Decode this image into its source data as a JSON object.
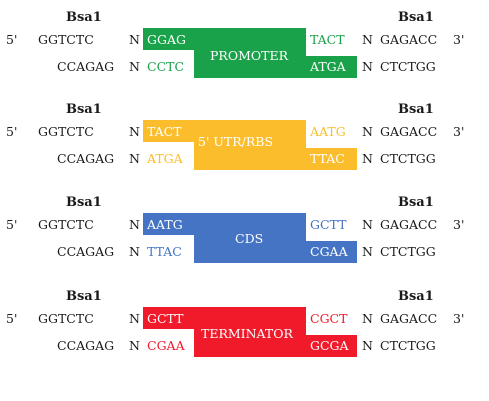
{
  "modules": [
    {
      "enzyme_left": "Bsa1",
      "enzyme_right": "Bsa1",
      "prime5": "5'",
      "site_top": "GGTCTC",
      "n_top": "N",
      "left_top": "GGAG",
      "label": "PROMOTER",
      "right_top": "TACT",
      "n_top2": "N",
      "site_top_rc": "GAGACC",
      "prime3": "3'",
      "site_bottom": "CCAGAG",
      "n_bottom": "N",
      "left_bottom": "CCTC",
      "right_bottom": "ATGA",
      "n_bottom2": "N",
      "site_bottom_rc": "CTCTGG",
      "color": "#1aa24a"
    },
    {
      "enzyme_left": "Bsa1",
      "enzyme_right": "Bsa1",
      "prime5": "5'",
      "site_top": "GGTCTC",
      "n_top": "N",
      "left_top": "TACT",
      "label": "5' UTR/RBS",
      "right_top": "AATG",
      "n_top2": "N",
      "site_top_rc": "GAGACC",
      "prime3": "3'",
      "site_bottom": "CCAGAG",
      "n_bottom": "N",
      "left_bottom": "ATGA",
      "right_bottom": "TTAC",
      "n_bottom2": "N",
      "site_bottom_rc": "CTCTGG",
      "color": "#fbbd2c"
    },
    {
      "enzyme_left": "Bsa1",
      "enzyme_right": "Bsa1",
      "prime5": "5'",
      "site_top": "GGTCTC",
      "n_top": "N",
      "left_top": "AATG",
      "label": "CDS",
      "right_top": "GCTT",
      "n_top2": "N",
      "site_top_rc": "GAGACC",
      "prime3": "3'",
      "site_bottom": "CCAGAG",
      "n_bottom": "N",
      "left_bottom": "TTAC",
      "right_bottom": "CGAA",
      "n_bottom2": "N",
      "site_bottom_rc": "CTCTGG",
      "color": "#4574c4"
    },
    {
      "enzyme_left": "Bsa1",
      "enzyme_right": "Bsa1",
      "prime5": "5'",
      "site_top": "GGTCTC",
      "n_top": "N",
      "left_top": "GCTT",
      "label": "TERMINATOR",
      "right_top": "CGCT",
      "n_top2": "N",
      "site_top_rc": "GAGACC",
      "prime3": "3'",
      "site_bottom": "CCAGAG",
      "n_bottom": "N",
      "left_bottom": "CGAA",
      "right_bottom": "GCGA",
      "n_bottom2": "N",
      "site_bottom_rc": "CTCTGG",
      "color": "#f01a2a"
    }
  ]
}
